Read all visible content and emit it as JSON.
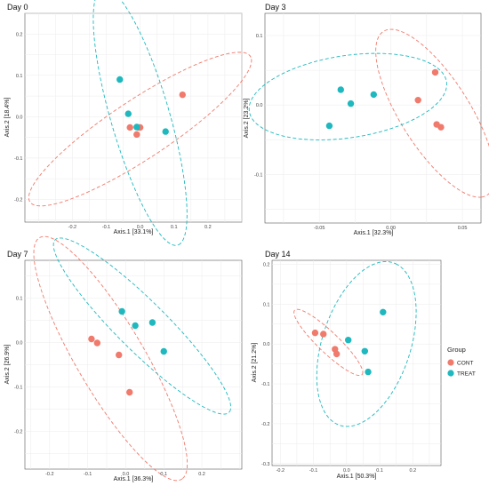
{
  "colors": {
    "CONT": "#F07A6C",
    "TREAT": "#1EB8BE",
    "panel_border": "#555555",
    "grid": "#EBEBEB"
  },
  "legend": {
    "title": "Group",
    "placement": "right",
    "entries": [
      {
        "group": "CONT",
        "label": "CONT"
      },
      {
        "group": "TREAT",
        "label": "TREAT"
      }
    ]
  },
  "chart_data": [
    {
      "type": "scatter",
      "title": "Day 0",
      "xlabel": "Axis.1   [33.1%]",
      "ylabel": "Axis.2   [18.4%]",
      "xlim": [
        -0.34,
        0.3
      ],
      "ylim": [
        -0.255,
        0.25
      ],
      "xticks": [
        -0.2,
        -0.1,
        0.0,
        0.1,
        0.2
      ],
      "xtick_labels": [
        "-0.2",
        "-0.1",
        "0.0",
        "0.1",
        "0.2"
      ],
      "yticks": [
        -0.2,
        -0.1,
        0.0,
        0.1,
        0.2
      ],
      "ytick_labels": [
        "-0.2",
        "-0.1",
        "0.0",
        "0.1",
        "0.2"
      ],
      "grid": true,
      "series": [
        {
          "name": "CONT",
          "x": [
            0.125,
            -0.03,
            -0.005,
            0.0,
            -0.01
          ],
          "y": [
            0.053,
            -0.026,
            -0.026,
            -0.026,
            -0.043
          ]
        },
        {
          "name": "TREAT",
          "x": [
            -0.06,
            -0.035,
            -0.01,
            0.075
          ],
          "y": [
            0.09,
            0.007,
            -0.025,
            -0.036
          ]
        }
      ],
      "ellipses": [
        {
          "group": "CONT",
          "cx": 0.0,
          "cy": -0.03,
          "semi_major": 0.37,
          "semi_minor": 0.075,
          "angle_deg": 28
        },
        {
          "group": "TREAT",
          "cx": 0.0,
          "cy": 0.0,
          "semi_major": 0.33,
          "semi_minor": 0.085,
          "angle_deg": -70
        }
      ]
    },
    {
      "type": "scatter",
      "title": "Day 3",
      "xlabel": "Axis.1   [32.3%]",
      "ylabel": "Axis.2   [23.2%]",
      "xlim": [
        -0.088,
        0.063
      ],
      "ylim": [
        -0.17,
        0.132
      ],
      "xticks": [
        -0.05,
        0.0,
        0.05
      ],
      "xtick_labels": [
        "-0.05",
        "0.00",
        "0.05"
      ],
      "yticks": [
        -0.1,
        0.0,
        0.1
      ],
      "ytick_labels": [
        "-0.1",
        "0.0",
        "0.1"
      ],
      "grid": true,
      "series": [
        {
          "name": "CONT",
          "x": [
            0.031,
            0.019,
            0.032,
            0.035
          ],
          "y": [
            0.047,
            0.007,
            -0.028,
            -0.032
          ]
        },
        {
          "name": "TREAT",
          "x": [
            -0.035,
            -0.012,
            -0.028,
            -0.043
          ],
          "y": [
            0.022,
            0.015,
            0.002,
            -0.03
          ]
        }
      ],
      "ellipses": [
        {
          "group": "CONT",
          "cx": 0.031,
          "cy": -0.012,
          "semi_major": 0.125,
          "semi_minor": 0.027,
          "angle_deg": -75
        },
        {
          "group": "TREAT",
          "cx": -0.03,
          "cy": 0.012,
          "semi_major": 0.075,
          "semi_minor": 0.055,
          "angle_deg": 35
        }
      ]
    },
    {
      "type": "scatter",
      "title": "Day 7",
      "xlabel": "Axis.1   [36.3%]",
      "ylabel": "Axis.2   [26.9%]",
      "xlim": [
        -0.265,
        0.305
      ],
      "ylim": [
        -0.285,
        0.185
      ],
      "xticks": [
        -0.2,
        -0.1,
        0.0,
        0.1,
        0.2
      ],
      "xtick_labels": [
        "-0.2",
        "-0.1",
        "0.0",
        "0.1",
        "0.2"
      ],
      "yticks": [
        -0.2,
        -0.1,
        0.0,
        0.1
      ],
      "ytick_labels": [
        "-0.2",
        "-0.1",
        "0.0",
        "0.1"
      ],
      "grid": true,
      "series": [
        {
          "name": "CONT",
          "x": [
            -0.09,
            -0.075,
            -0.018,
            0.01
          ],
          "y": [
            0.008,
            -0.001,
            -0.028,
            -0.112
          ]
        },
        {
          "name": "TREAT",
          "x": [
            -0.01,
            0.025,
            0.07,
            0.1
          ],
          "y": [
            0.07,
            0.038,
            0.045,
            -0.02
          ]
        }
      ],
      "ellipses": [
        {
          "group": "CONT",
          "cx": -0.04,
          "cy": -0.036,
          "semi_major": 0.33,
          "semi_minor": 0.085,
          "angle_deg": -55
        },
        {
          "group": "TREAT",
          "cx": 0.043,
          "cy": 0.037,
          "semi_major": 0.3,
          "semi_minor": 0.06,
          "angle_deg": -40
        }
      ]
    },
    {
      "type": "scatter",
      "title": "Day 14",
      "xlabel": "Axis.1   [50.3%]",
      "ylabel": "Axis.2   [21.2%]",
      "xlim": [
        -0.225,
        0.285
      ],
      "ylim": [
        -0.305,
        0.21
      ],
      "xticks": [
        -0.2,
        -0.1,
        0.0,
        0.1,
        0.2
      ],
      "xtick_labels": [
        "-0.2",
        "-0.1",
        "0.0",
        "0.1",
        "0.2"
      ],
      "yticks": [
        -0.3,
        -0.2,
        -0.1,
        0.0,
        0.1,
        0.2
      ],
      "ytick_labels": [
        "-0.3",
        "-0.2",
        "-0.1",
        "0.0",
        "0.1",
        "0.2"
      ],
      "grid": true,
      "series": [
        {
          "name": "CONT",
          "x": [
            -0.095,
            -0.07,
            -0.035,
            -0.03
          ],
          "y": [
            0.028,
            0.025,
            -0.013,
            -0.025
          ]
        },
        {
          "name": "TREAT",
          "x": [
            0.005,
            0.055,
            0.065,
            0.11
          ],
          "y": [
            0.01,
            -0.018,
            -0.07,
            0.08
          ]
        }
      ],
      "ellipses": [
        {
          "group": "CONT",
          "cx": -0.055,
          "cy": 0.004,
          "semi_major": 0.13,
          "semi_minor": 0.028,
          "angle_deg": -38
        },
        {
          "group": "TREAT",
          "cx": 0.06,
          "cy": 0.0,
          "semi_major": 0.22,
          "semi_minor": 0.13,
          "angle_deg": 65
        }
      ]
    }
  ]
}
